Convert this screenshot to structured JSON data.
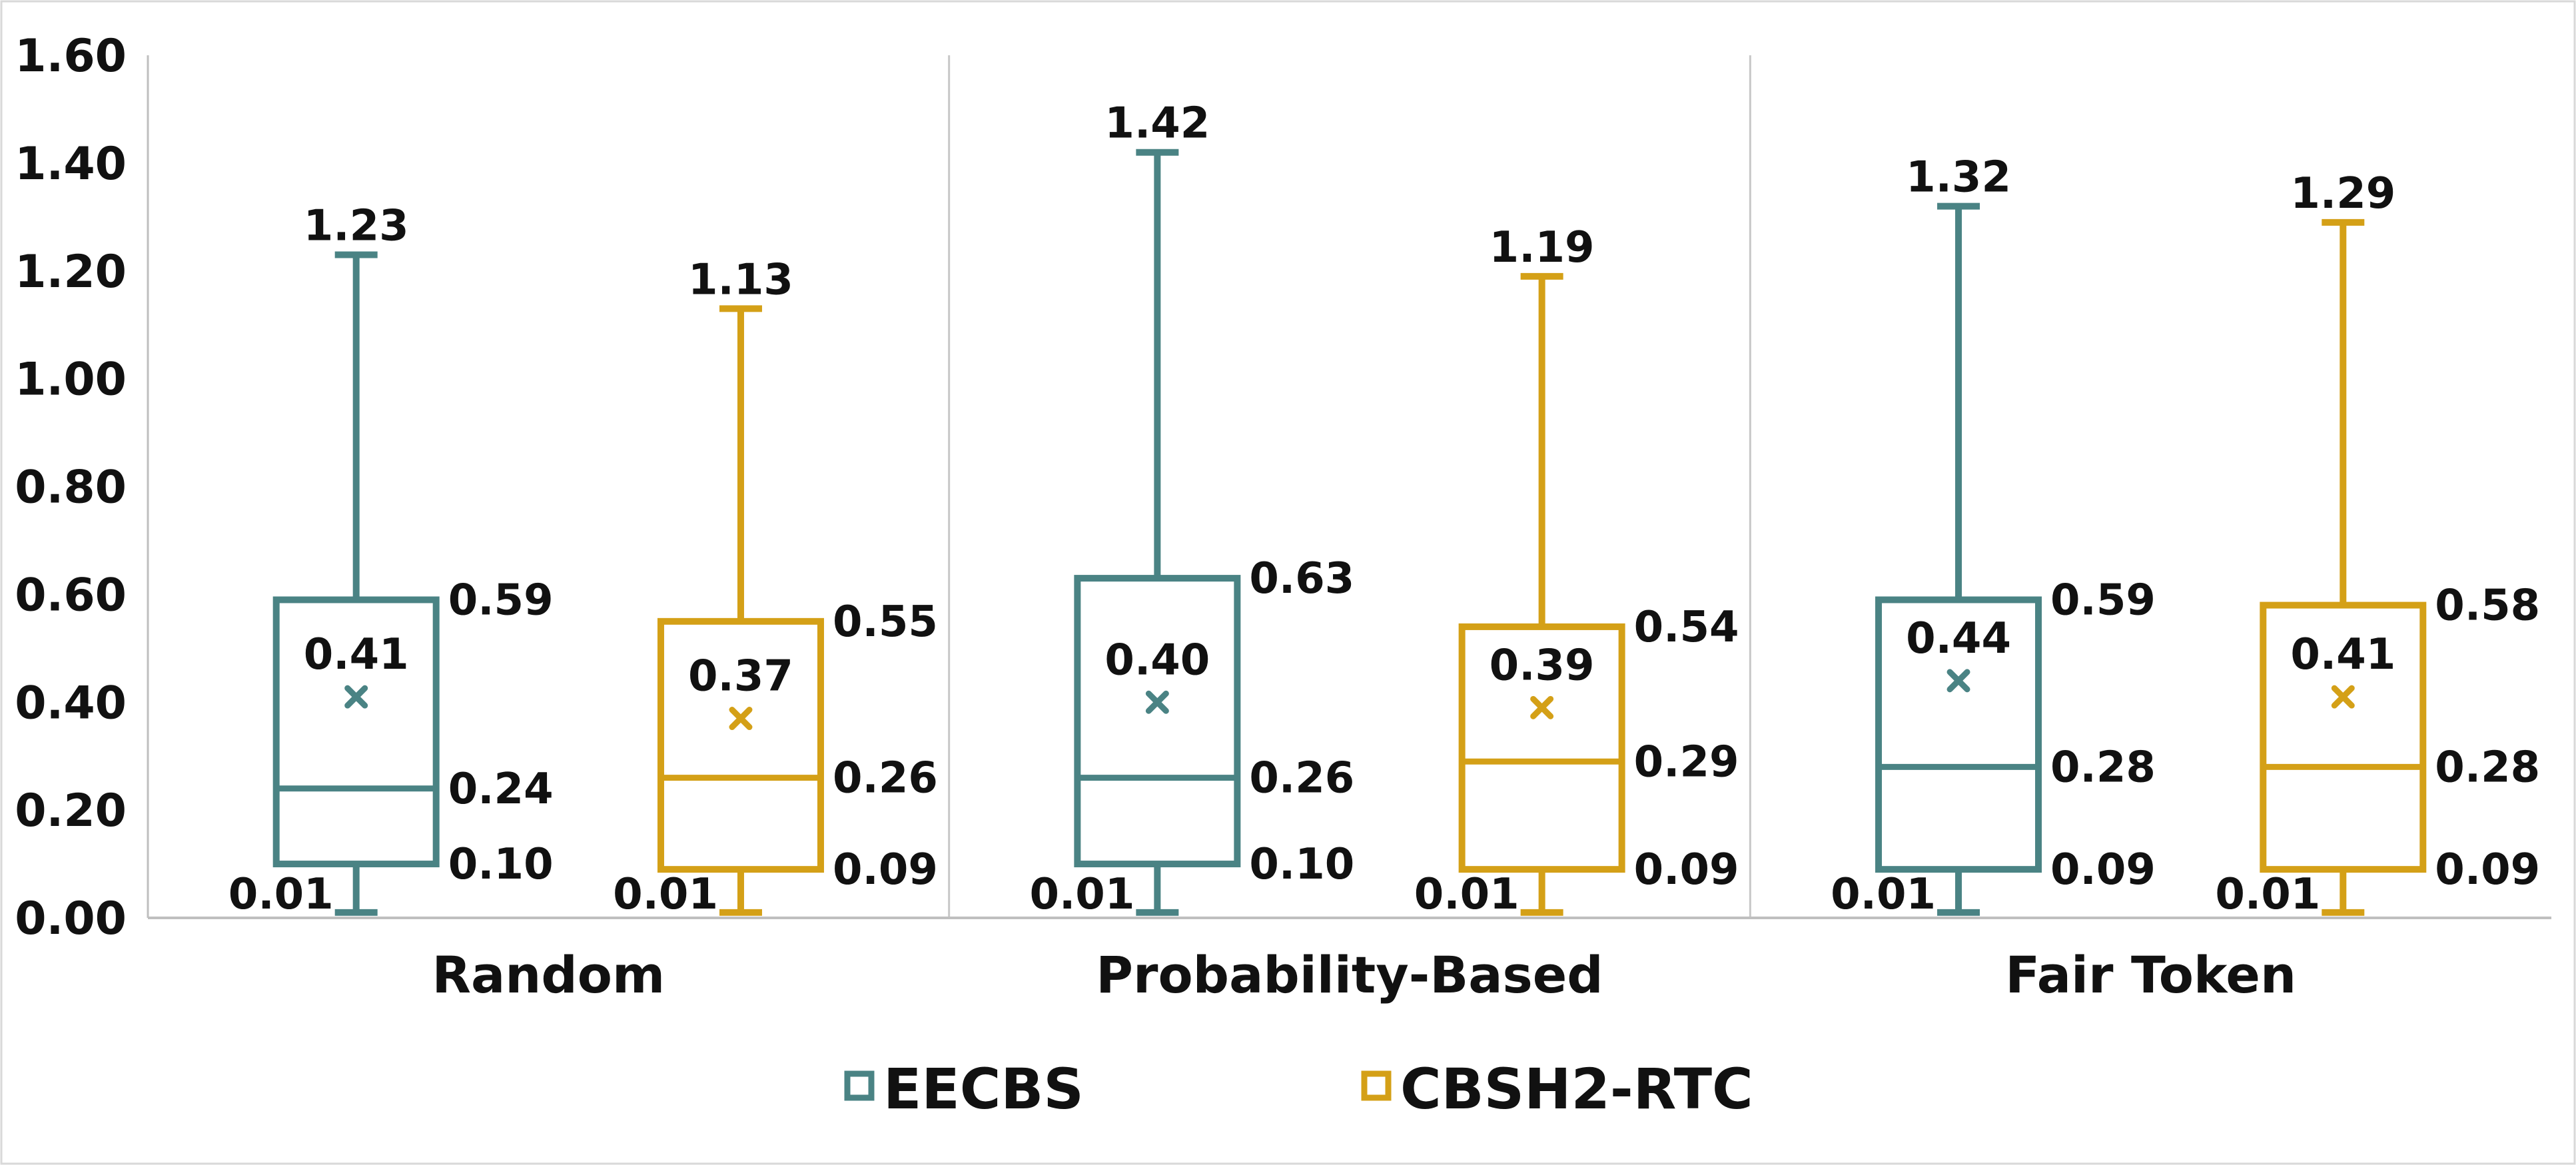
{
  "chart_data": {
    "type": "box",
    "ylim": [
      0,
      1.6
    ],
    "y_ticks": [
      "0.00",
      "0.20",
      "0.40",
      "0.60",
      "0.80",
      "1.00",
      "1.20",
      "1.40",
      "1.60"
    ],
    "y_tick_values": [
      0,
      0.2,
      0.4,
      0.6,
      0.8,
      1.0,
      1.2,
      1.4,
      1.6
    ],
    "categories": [
      "Random",
      "Probability-Based",
      "Fair Token"
    ],
    "legend_position": "bottom",
    "series": [
      {
        "name": "EECBS",
        "color": "#4a8384",
        "boxes": [
          {
            "min": 0.01,
            "q1": 0.1,
            "median": 0.24,
            "q3": 0.59,
            "max": 1.23,
            "mean": 0.41,
            "labels": {
              "min": "0.01",
              "q1": "0.10",
              "median": "0.24",
              "q3": "0.59",
              "max": "1.23",
              "mean": "0.41"
            }
          },
          {
            "min": 0.01,
            "q1": 0.1,
            "median": 0.26,
            "q3": 0.63,
            "max": 1.42,
            "mean": 0.4,
            "labels": {
              "min": "0.01",
              "q1": "0.10",
              "median": "0.26",
              "q3": "0.63",
              "max": "1.42",
              "mean": "0.40"
            }
          },
          {
            "min": 0.01,
            "q1": 0.09,
            "median": 0.28,
            "q3": 0.59,
            "max": 1.32,
            "mean": 0.44,
            "labels": {
              "min": "0.01",
              "q1": "0.09",
              "median": "0.28",
              "q3": "0.59",
              "max": "1.32",
              "mean": "0.44"
            }
          }
        ]
      },
      {
        "name": "CBSH2-RTC",
        "color": "#d4a017",
        "boxes": [
          {
            "min": 0.01,
            "q1": 0.09,
            "median": 0.26,
            "q3": 0.55,
            "max": 1.13,
            "mean": 0.37,
            "labels": {
              "min": "0.01",
              "q1": "0.09",
              "median": "0.26",
              "q3": "0.55",
              "max": "1.13",
              "mean": "0.37"
            }
          },
          {
            "min": 0.01,
            "q1": 0.09,
            "median": 0.29,
            "q3": 0.54,
            "max": 1.19,
            "mean": 0.39,
            "labels": {
              "min": "0.01",
              "q1": "0.09",
              "median": "0.29",
              "q3": "0.54",
              "max": "1.19",
              "mean": "0.39"
            }
          },
          {
            "min": 0.01,
            "q1": 0.09,
            "median": 0.28,
            "q3": 0.58,
            "max": 1.29,
            "mean": 0.41,
            "labels": {
              "min": "0.01",
              "q1": "0.09",
              "median": "0.28",
              "q3": "0.58",
              "max": "1.29",
              "mean": "0.41"
            }
          }
        ]
      }
    ]
  }
}
